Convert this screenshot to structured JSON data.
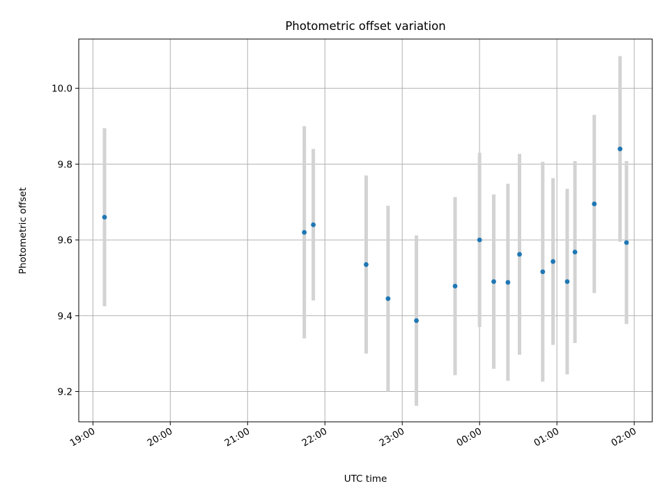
{
  "chart_data": {
    "type": "scatter",
    "title": "Photometric offset variation",
    "xlabel": "UTC time",
    "ylabel": "Photometric offset",
    "grid": true,
    "x_ticks": [
      "19:00",
      "20:00",
      "21:00",
      "22:00",
      "23:00",
      "00:00",
      "01:00",
      "02:00"
    ],
    "y_ticks": [
      "9.2",
      "9.4",
      "9.6",
      "9.8",
      "10.0"
    ],
    "xlim": [
      "18:49",
      "02:14"
    ],
    "ylim": [
      9.12,
      10.13
    ],
    "colors": {
      "point": "#1f77b4",
      "errorbar": "#d3d3d3"
    },
    "points": [
      {
        "time": "19:09",
        "y": 9.66,
        "err": 0.235
      },
      {
        "time": "21:44",
        "y": 9.62,
        "err": 0.28
      },
      {
        "time": "21:51",
        "y": 9.64,
        "err": 0.2
      },
      {
        "time": "22:32",
        "y": 9.535,
        "err": 0.235
      },
      {
        "time": "22:49",
        "y": 9.445,
        "err": 0.245
      },
      {
        "time": "23:11",
        "y": 9.387,
        "err": 0.225
      },
      {
        "time": "23:41",
        "y": 9.478,
        "err": 0.235
      },
      {
        "time": "00:00",
        "y": 9.6,
        "err": 0.23
      },
      {
        "time": "00:11",
        "y": 9.49,
        "err": 0.23
      },
      {
        "time": "00:22",
        "y": 9.488,
        "err": 0.26
      },
      {
        "time": "00:31",
        "y": 9.562,
        "err": 0.265
      },
      {
        "time": "00:49",
        "y": 9.516,
        "err": 0.29
      },
      {
        "time": "00:57",
        "y": 9.543,
        "err": 0.22
      },
      {
        "time": "01:08",
        "y": 9.49,
        "err": 0.245
      },
      {
        "time": "01:14",
        "y": 9.568,
        "err": 0.24
      },
      {
        "time": "01:29",
        "y": 9.695,
        "err": 0.235
      },
      {
        "time": "01:49",
        "y": 9.84,
        "err": 0.245
      },
      {
        "time": "01:54",
        "y": 9.593,
        "err": 0.215
      }
    ]
  }
}
